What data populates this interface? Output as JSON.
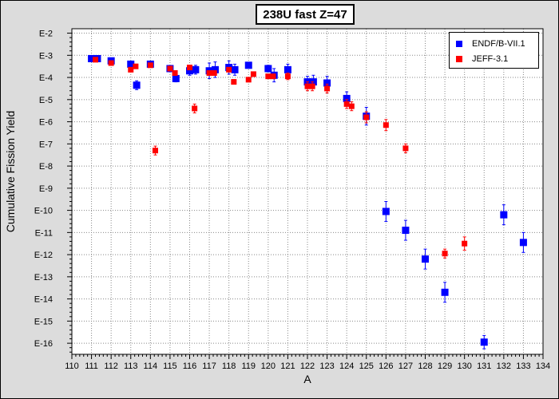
{
  "chart_data": {
    "type": "scatter",
    "title": "238U fast Z=47",
    "xlabel": "A",
    "ylabel": "Cumulative Fission Yield",
    "xlim": [
      110,
      134
    ],
    "ylim": [
      -16.5,
      -1.8
    ],
    "yscale": "log10",
    "x_ticks": [
      "110",
      "111",
      "112",
      "113",
      "114",
      "115",
      "116",
      "117",
      "118",
      "119",
      "120",
      "121",
      "122",
      "123",
      "124",
      "125",
      "126",
      "127",
      "128",
      "129",
      "130",
      "131",
      "132",
      "133",
      "134"
    ],
    "y_ticks": [
      {
        "value": -2,
        "label": "E-2"
      },
      {
        "value": -3,
        "label": "E-3"
      },
      {
        "value": -4,
        "label": "E-4"
      },
      {
        "value": -5,
        "label": "E-5"
      },
      {
        "value": -6,
        "label": "E-6"
      },
      {
        "value": -7,
        "label": "E-7"
      },
      {
        "value": -8,
        "label": "E-8"
      },
      {
        "value": -9,
        "label": "E-9"
      },
      {
        "value": -10,
        "label": "E-10"
      },
      {
        "value": -11,
        "label": "E-11"
      },
      {
        "value": -12,
        "label": "E-12"
      },
      {
        "value": -13,
        "label": "E-13"
      },
      {
        "value": -14,
        "label": "E-14"
      },
      {
        "value": -15,
        "label": "E-15"
      },
      {
        "value": -16,
        "label": "E-16"
      }
    ],
    "grid": true,
    "legend_position": "top-right",
    "series": [
      {
        "name": "ENDF/B-VII.1",
        "color": "#0000ff",
        "marker_size": 9,
        "points": [
          {
            "x": 111,
            "y": -3.15,
            "err": 0.05
          },
          {
            "x": 111.3,
            "y": -3.15,
            "err": 0.05
          },
          {
            "x": 112,
            "y": -3.25,
            "err": 0.05
          },
          {
            "x": 113,
            "y": -3.4,
            "err": 0.05
          },
          {
            "x": 113.3,
            "y": -4.35,
            "err": 0.2
          },
          {
            "x": 114,
            "y": -3.4,
            "err": 0.05
          },
          {
            "x": 115,
            "y": -3.6,
            "err": 0.1
          },
          {
            "x": 115.3,
            "y": -4.05,
            "err": 0.15
          },
          {
            "x": 116,
            "y": -3.7,
            "err": 0.2
          },
          {
            "x": 116.3,
            "y": -3.65,
            "err": 0.2
          },
          {
            "x": 117,
            "y": -3.7,
            "err": 0.35
          },
          {
            "x": 117.3,
            "y": -3.65,
            "err": 0.35
          },
          {
            "x": 118,
            "y": -3.55,
            "err": 0.3
          },
          {
            "x": 118.3,
            "y": -3.65,
            "err": 0.25
          },
          {
            "x": 119,
            "y": -3.45,
            "err": 0.1
          },
          {
            "x": 120,
            "y": -3.6,
            "err": 0.15
          },
          {
            "x": 120.3,
            "y": -3.9,
            "err": 0.3
          },
          {
            "x": 121,
            "y": -3.65,
            "err": 0.25
          },
          {
            "x": 122,
            "y": -4.2,
            "err": 0.25
          },
          {
            "x": 122.3,
            "y": -4.2,
            "err": 0.3
          },
          {
            "x": 123,
            "y": -4.25,
            "err": 0.3
          },
          {
            "x": 124,
            "y": -4.95,
            "err": 0.3
          },
          {
            "x": 125,
            "y": -5.75,
            "err": 0.4
          },
          {
            "x": 126,
            "y": -10.05,
            "err": 0.45
          },
          {
            "x": 127,
            "y": -10.9,
            "err": 0.45
          },
          {
            "x": 128,
            "y": -12.2,
            "err": 0.45
          },
          {
            "x": 129,
            "y": -13.7,
            "err": 0.45
          },
          {
            "x": 131,
            "y": -15.95,
            "err": 0.3
          },
          {
            "x": 132,
            "y": -10.2,
            "err": 0.45
          },
          {
            "x": 133,
            "y": -11.45,
            "err": 0.45
          }
        ]
      },
      {
        "name": "JEFF-3.1",
        "color": "#ff0000",
        "marker_size": 7,
        "points": [
          {
            "x": 111.2,
            "y": -3.2,
            "err": 0.05
          },
          {
            "x": 112,
            "y": -3.35,
            "err": 0.05
          },
          {
            "x": 113,
            "y": -3.65,
            "err": 0.05
          },
          {
            "x": 113.25,
            "y": -3.5,
            "err": 0.05
          },
          {
            "x": 114,
            "y": -3.45,
            "err": 0.05
          },
          {
            "x": 114.25,
            "y": -7.3,
            "err": 0.2
          },
          {
            "x": 115,
            "y": -3.6,
            "err": 0.05
          },
          {
            "x": 115.25,
            "y": -3.8,
            "err": 0.05
          },
          {
            "x": 116,
            "y": -3.55,
            "err": 0.05
          },
          {
            "x": 116.25,
            "y": -5.4,
            "err": 0.2
          },
          {
            "x": 117,
            "y": -3.8,
            "err": 0.05
          },
          {
            "x": 117.25,
            "y": -3.8,
            "err": 0.05
          },
          {
            "x": 118,
            "y": -3.65,
            "err": 0.05
          },
          {
            "x": 118.25,
            "y": -4.2,
            "err": 0.1
          },
          {
            "x": 119,
            "y": -4.1,
            "err": 0.1
          },
          {
            "x": 119.25,
            "y": -3.85,
            "err": 0.1
          },
          {
            "x": 120,
            "y": -3.95,
            "err": 0.1
          },
          {
            "x": 120.25,
            "y": -3.95,
            "err": 0.1
          },
          {
            "x": 121,
            "y": -3.95,
            "err": 0.15
          },
          {
            "x": 122,
            "y": -4.4,
            "err": 0.2
          },
          {
            "x": 122.25,
            "y": -4.4,
            "err": 0.2
          },
          {
            "x": 123,
            "y": -4.5,
            "err": 0.2
          },
          {
            "x": 124,
            "y": -5.2,
            "err": 0.2
          },
          {
            "x": 124.25,
            "y": -5.3,
            "err": 0.2
          },
          {
            "x": 125,
            "y": -5.8,
            "err": 0.25
          },
          {
            "x": 126,
            "y": -6.15,
            "err": 0.25
          },
          {
            "x": 127,
            "y": -7.2,
            "err": 0.2
          },
          {
            "x": 129,
            "y": -11.95,
            "err": 0.2
          },
          {
            "x": 130,
            "y": -11.5,
            "err": 0.3
          }
        ]
      }
    ]
  }
}
